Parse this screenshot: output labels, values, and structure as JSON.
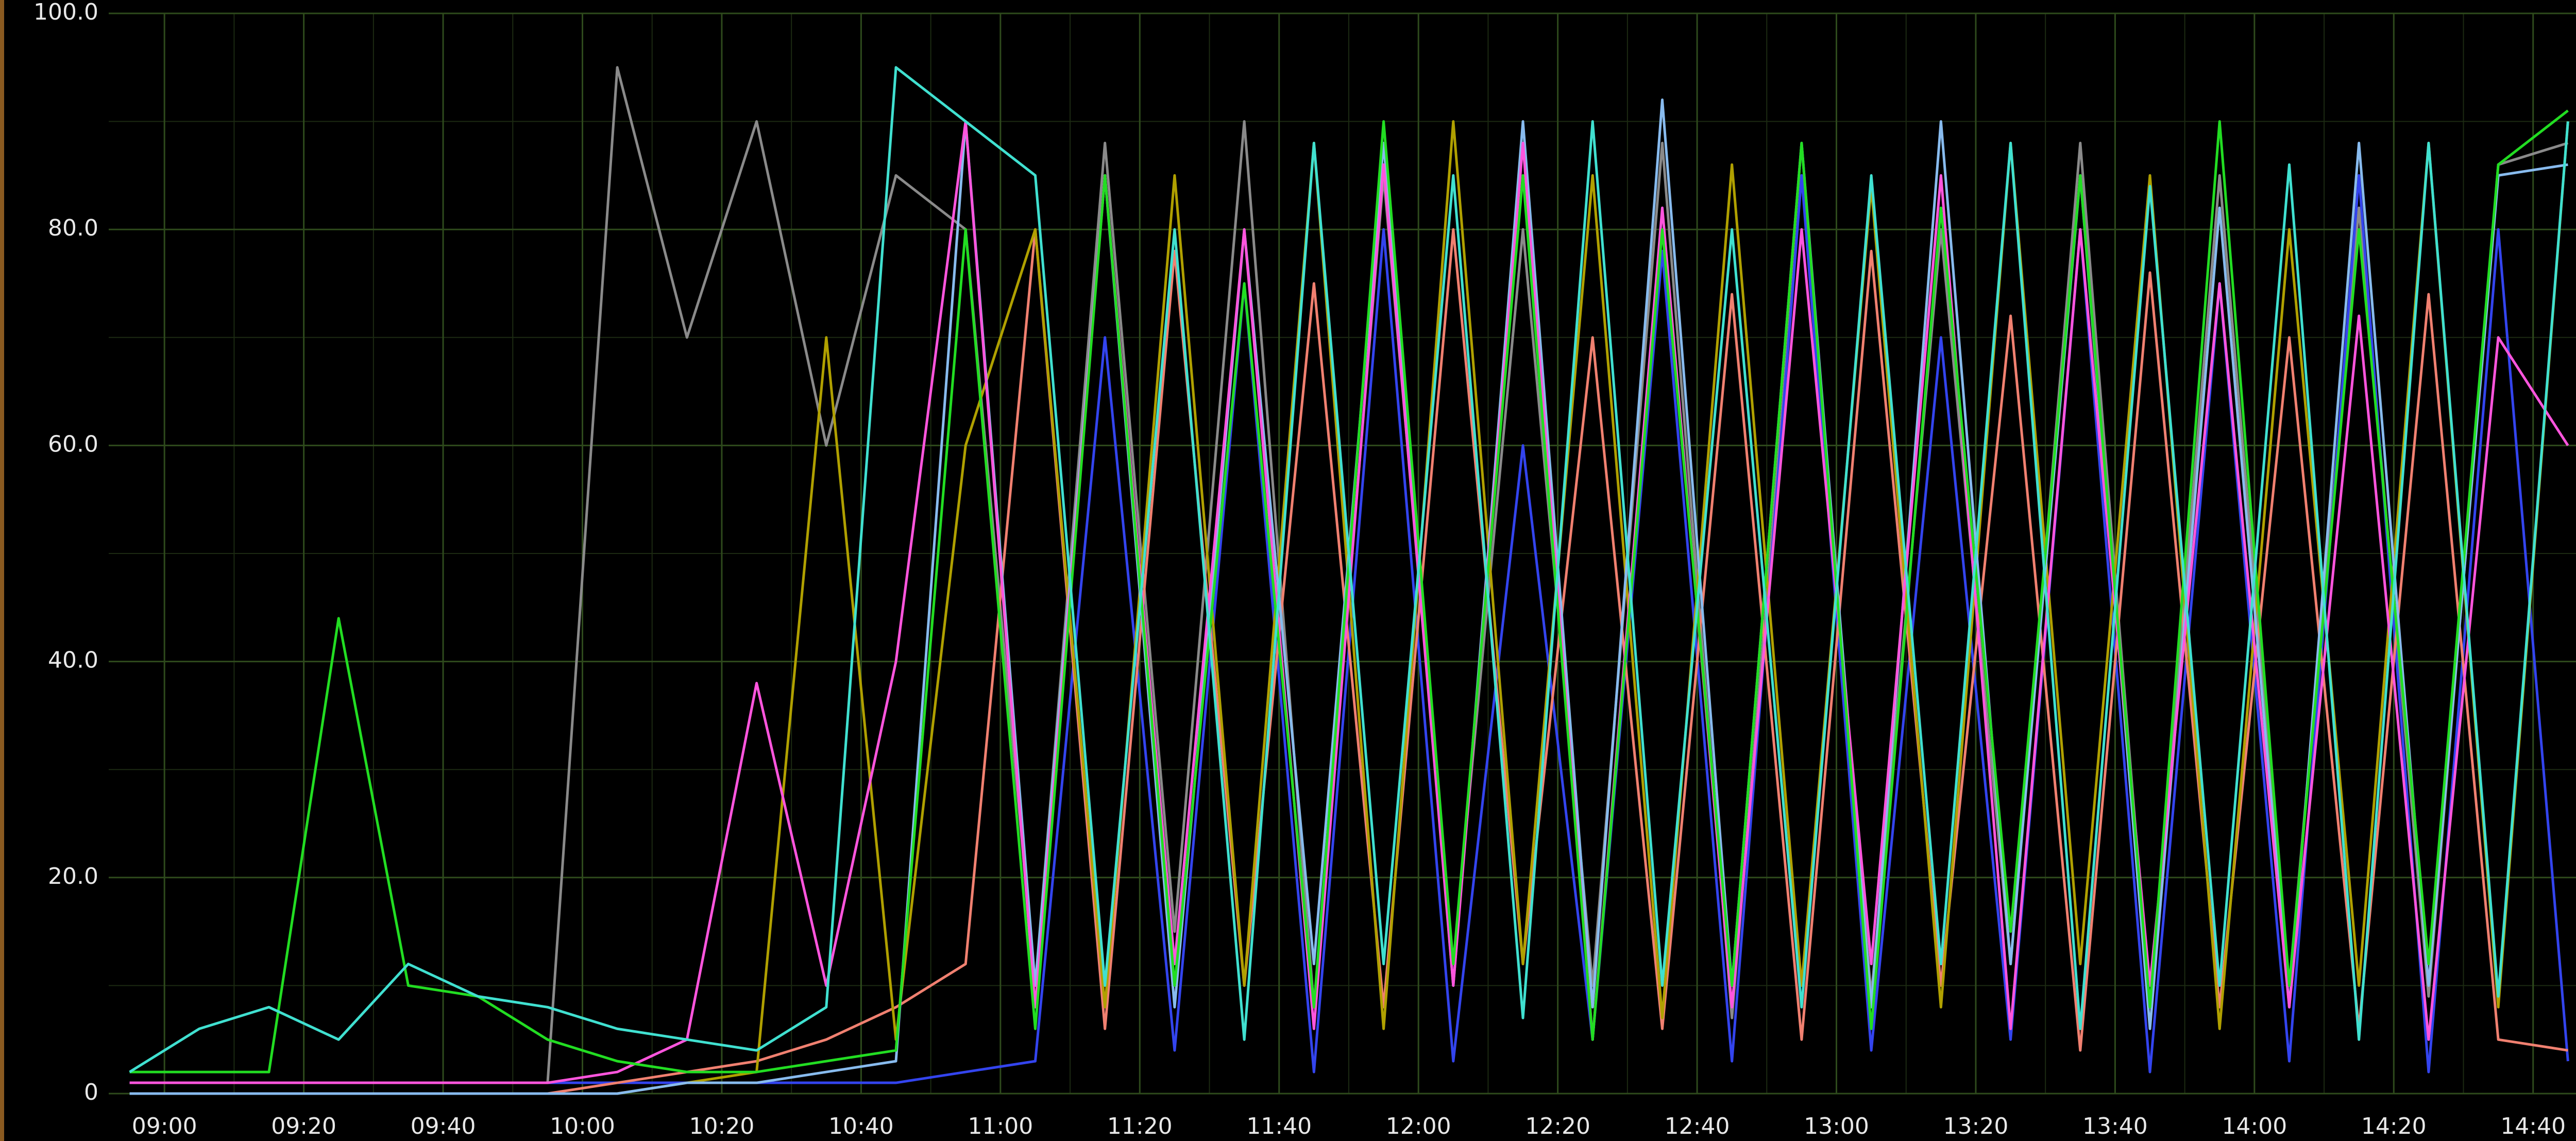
{
  "chart_data": {
    "type": "line",
    "x": [
      "08:55",
      "09:05",
      "09:15",
      "09:25",
      "09:35",
      "09:45",
      "09:55",
      "10:05",
      "10:15",
      "10:25",
      "10:35",
      "10:45",
      "10:55",
      "11:05",
      "11:15",
      "11:25",
      "11:35",
      "11:45",
      "11:55",
      "12:05",
      "12:15",
      "12:25",
      "12:35",
      "12:45",
      "12:55",
      "13:05",
      "13:15",
      "13:25",
      "13:35",
      "13:45",
      "13:55",
      "14:05",
      "14:15",
      "14:25",
      "14:35",
      "14:45"
    ],
    "xlim": [
      "08:52",
      "14:52"
    ],
    "xticks": [
      "09:00",
      "09:20",
      "09:40",
      "10:00",
      "10:20",
      "10:40",
      "11:00",
      "11:20",
      "11:40",
      "12:00",
      "12:20",
      "12:40",
      "13:00",
      "13:20",
      "13:40",
      "14:00",
      "14:20",
      "14:40"
    ],
    "ylim": [
      0,
      100
    ],
    "yticks": [
      0,
      {
        "value": 20,
        "label": "20.0"
      },
      {
        "value": 40,
        "label": "40.0"
      },
      {
        "value": 60,
        "label": "60.0"
      },
      {
        "value": 80,
        "label": "80.0"
      },
      {
        "value": 100,
        "label": "100.0"
      }
    ],
    "grid": true,
    "series": [
      {
        "color": "#8a8a8a",
        "values": [
          1,
          1,
          1,
          1,
          1,
          1,
          1,
          95,
          70,
          90,
          60,
          85,
          80,
          10,
          88,
          15,
          90,
          8,
          85,
          12,
          80,
          10,
          88,
          7,
          85,
          9,
          80,
          12,
          88,
          8,
          85,
          10,
          82,
          9,
          86,
          88
        ]
      },
      {
        "color": "#3344ee",
        "values": [
          1,
          1,
          1,
          1,
          1,
          1,
          1,
          1,
          1,
          1,
          1,
          1,
          2,
          3,
          70,
          4,
          75,
          2,
          80,
          3,
          60,
          5,
          78,
          3,
          85,
          4,
          70,
          5,
          80,
          2,
          75,
          3,
          85,
          2,
          80,
          3
        ]
      },
      {
        "color": "#f08070",
        "values": [
          0,
          0,
          0,
          0,
          0,
          0,
          0,
          1,
          2,
          3,
          5,
          8,
          12,
          80,
          6,
          78,
          10,
          75,
          8,
          80,
          12,
          70,
          6,
          74,
          5,
          78,
          10,
          72,
          4,
          76,
          8,
          70,
          6,
          74,
          5,
          4
        ]
      },
      {
        "color": "#b0a000",
        "values": [
          0,
          0,
          0,
          0,
          0,
          0,
          0,
          0,
          1,
          2,
          70,
          5,
          60,
          80,
          8,
          85,
          10,
          88,
          6,
          90,
          12,
          85,
          7,
          86,
          10,
          84,
          8,
          88,
          12,
          85,
          6,
          80,
          10,
          88,
          8,
          90
        ]
      },
      {
        "color": "#88bbee",
        "values": [
          0,
          0,
          0,
          0,
          0,
          0,
          0,
          0,
          1,
          1,
          2,
          3,
          90,
          10,
          85,
          8,
          80,
          12,
          88,
          10,
          90,
          8,
          92,
          10,
          88,
          8,
          90,
          12,
          85,
          6,
          82,
          8,
          88,
          10,
          85,
          86
        ]
      },
      {
        "color": "#ff55dd",
        "values": [
          1,
          1,
          1,
          1,
          1,
          1,
          1,
          2,
          5,
          38,
          10,
          40,
          90,
          8,
          85,
          12,
          80,
          6,
          86,
          10,
          88,
          5,
          82,
          8,
          80,
          12,
          85,
          6,
          80,
          10,
          75,
          8,
          72,
          5,
          70,
          60
        ]
      },
      {
        "color": "#22dd22",
        "values": [
          2,
          2,
          2,
          44,
          10,
          9,
          5,
          3,
          2,
          2,
          3,
          4,
          80,
          6,
          85,
          10,
          75,
          8,
          90,
          12,
          85,
          5,
          80,
          10,
          88,
          6,
          82,
          15,
          85,
          8,
          90,
          10,
          80,
          12,
          86,
          91
        ]
      },
      {
        "color": "#40e0d0",
        "values": [
          2,
          6,
          8,
          5,
          12,
          9,
          8,
          6,
          5,
          4,
          8,
          95,
          90,
          85,
          10,
          80,
          5,
          88,
          12,
          85,
          7,
          90,
          10,
          80,
          8,
          85,
          12,
          88,
          6,
          84,
          10,
          86,
          5,
          88,
          9,
          90
        ]
      }
    ]
  }
}
